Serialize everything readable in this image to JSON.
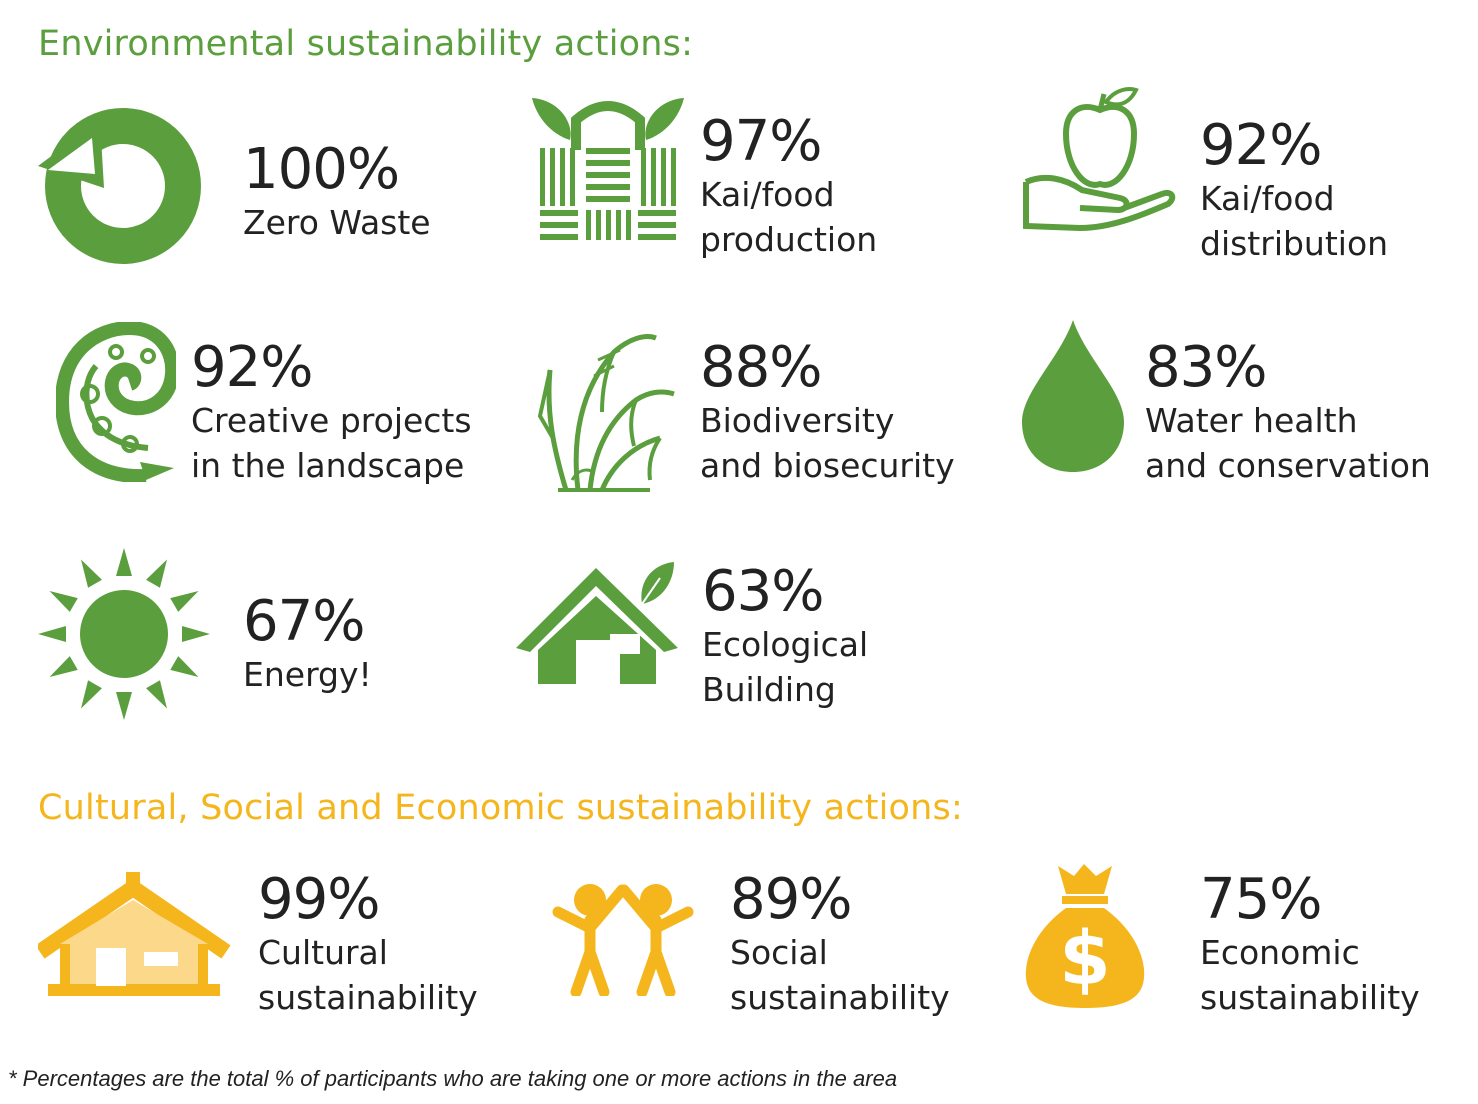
{
  "colors": {
    "green": "#5b9e3e",
    "yellow": "#f5b61d",
    "light_yellow": "#fcd98a",
    "text": "#222222"
  },
  "environmental": {
    "heading": "Environmental sustainability actions:",
    "items": [
      {
        "icon": "recycle-arrow-icon",
        "percent": "100%",
        "label_1": "Zero Waste",
        "label_2": ""
      },
      {
        "icon": "woven-basket-icon",
        "percent": "97%",
        "label_1": "Kai/food",
        "label_2": "production"
      },
      {
        "icon": "apple-in-hand-icon",
        "percent": "92%",
        "label_1": "Kai/food",
        "label_2": "distribution"
      },
      {
        "icon": "koru-fern-icon",
        "percent": "92%",
        "label_1": "Creative projects",
        "label_2": "in the landscape"
      },
      {
        "icon": "grass-plant-icon",
        "percent": "88%",
        "label_1": "Biodiversity",
        "label_2": "and biosecurity"
      },
      {
        "icon": "water-drop-icon",
        "percent": "83%",
        "label_1": "Water health",
        "label_2": "and conservation"
      },
      {
        "icon": "sun-icon",
        "percent": "67%",
        "label_1": "Energy!",
        "label_2": ""
      },
      {
        "icon": "eco-house-icon",
        "percent": "63%",
        "label_1": "Ecological",
        "label_2": "Building"
      }
    ]
  },
  "cultural": {
    "heading": "Cultural, Social and Economic sustainability actions:",
    "items": [
      {
        "icon": "meeting-house-icon",
        "percent": "99%",
        "label_1": "Cultural",
        "label_2": "sustainability"
      },
      {
        "icon": "people-holding-hands-icon",
        "percent": "89%",
        "label_1": "Social",
        "label_2": "sustainability"
      },
      {
        "icon": "money-bag-icon",
        "percent": "75%",
        "label_1": "Economic",
        "label_2": "sustainability"
      }
    ]
  },
  "footnote": "* Percentages are the total % of participants who are taking one or more actions in the area"
}
